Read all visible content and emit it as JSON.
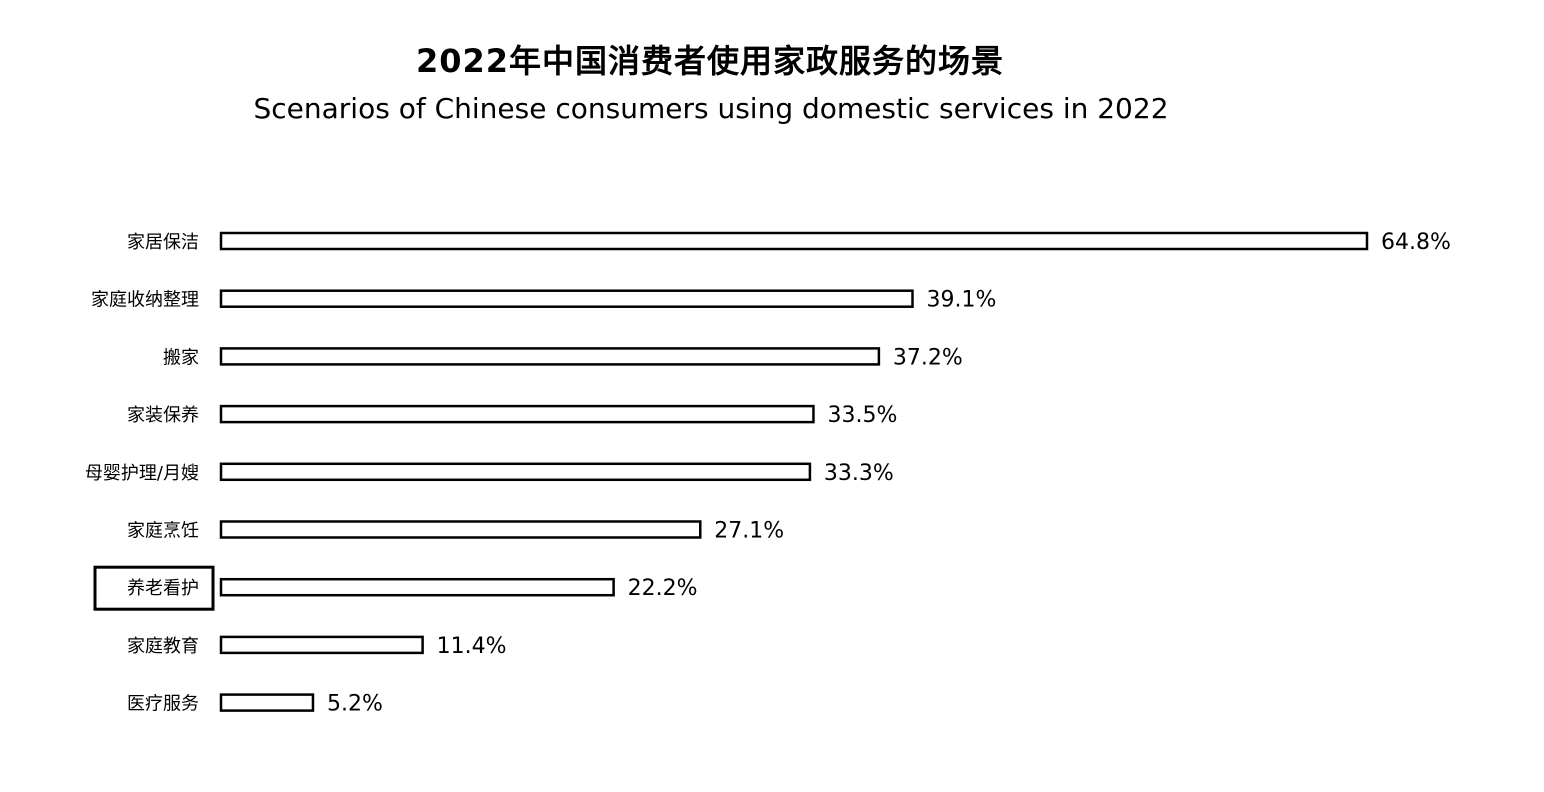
{
  "chart_data": {
    "type": "bar",
    "orientation": "horizontal",
    "title": "2022年中国消费者使用家政服务的场景",
    "subtitle": "Scenarios of Chinese consumers using domestic services in 2022",
    "categories": [
      "家居保洁",
      "家庭收纳整理",
      "搬家",
      "家装保养",
      "母婴护理/月嫂",
      "家庭烹饪",
      "养老看护",
      "家庭教育",
      "医疗服务"
    ],
    "values": [
      64.8,
      39.1,
      37.2,
      33.5,
      33.3,
      27.1,
      22.2,
      11.4,
      5.2
    ],
    "value_labels": [
      "64.8%",
      "39.1%",
      "37.2%",
      "33.5%",
      "33.3%",
      "27.1%",
      "22.2%",
      "11.4%",
      "5.2%"
    ],
    "highlighted_category": "养老看护",
    "unit": "%",
    "xlim": [
      0,
      64.8
    ],
    "grid": false,
    "legend": "none",
    "bar_fill": "#ffffff",
    "bar_stroke": "#000000"
  }
}
